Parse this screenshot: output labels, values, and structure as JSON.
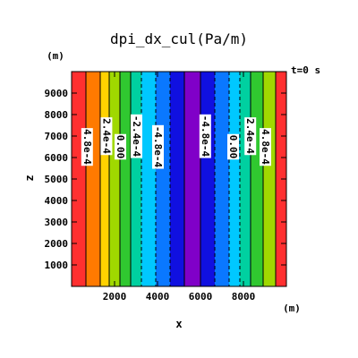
{
  "chart_data": {
    "type": "heatmap",
    "title": "dpi_dx_cul(Pa/m)",
    "xlabel": "x",
    "ylabel": "z",
    "x_unit": "(m)",
    "y_unit": "(m)",
    "time_label": "t=0  s",
    "xlim": [
      0,
      10000
    ],
    "ylim": [
      0,
      10000
    ],
    "x_ticks": [
      2000,
      4000,
      6000,
      8000
    ],
    "y_ticks": [
      1000,
      2000,
      3000,
      4000,
      5000,
      6000,
      7000,
      8000,
      9000
    ],
    "bands": [
      {
        "x0": 0,
        "x1": 667,
        "color": "#ff3030"
      },
      {
        "x0": 667,
        "x1": 1333,
        "color": "#ff7a00"
      },
      {
        "x0": 1333,
        "x1": 1750,
        "color": "#ffd200"
      },
      {
        "x0": 1750,
        "x1": 2250,
        "color": "#a0d800"
      },
      {
        "x0": 2250,
        "x1": 2750,
        "color": "#30c830"
      },
      {
        "x0": 2750,
        "x1": 3250,
        "color": "#00d0a0"
      },
      {
        "x0": 3250,
        "x1": 3917,
        "color": "#00c8ff"
      },
      {
        "x0": 3917,
        "x1": 4583,
        "color": "#0a78ff"
      },
      {
        "x0": 4583,
        "x1": 5250,
        "color": "#1010e0"
      },
      {
        "x0": 5250,
        "x1": 6000,
        "color": "#8000c8"
      },
      {
        "x0": 6000,
        "x1": 6667,
        "color": "#1010e0"
      },
      {
        "x0": 6667,
        "x1": 7333,
        "color": "#0a78ff"
      },
      {
        "x0": 7333,
        "x1": 7833,
        "color": "#00c8ff"
      },
      {
        "x0": 7833,
        "x1": 8333,
        "color": "#00d0a0"
      },
      {
        "x0": 8333,
        "x1": 8917,
        "color": "#30c830"
      },
      {
        "x0": 8917,
        "x1": 9500,
        "color": "#a0d800"
      },
      {
        "x0": 9500,
        "x1": 10000,
        "color": "#ff3030"
      }
    ],
    "contour_lines": [
      667,
      1333,
      1750,
      2250,
      2750,
      3250,
      3917,
      4583,
      5250,
      6000,
      6667,
      7333,
      7833,
      8333,
      8917,
      9500
    ],
    "dashed_contours": [
      3250,
      3917,
      4583,
      6667,
      7333,
      7833
    ],
    "contour_labels": [
      {
        "text": "4.8e-4",
        "x": 700,
        "y": 6500
      },
      {
        "text": "2.4e-4",
        "x": 1600,
        "y": 7000
      },
      {
        "text": "0.00",
        "x": 2250,
        "y": 6500
      },
      {
        "text": "-2.4e-4",
        "x": 3000,
        "y": 7000
      },
      {
        "text": "-4.8e-4",
        "x": 4000,
        "y": 6500
      },
      {
        "text": "-4.8e-4",
        "x": 6200,
        "y": 7000
      },
      {
        "text": "0.00",
        "x": 7500,
        "y": 6500
      },
      {
        "text": "2.4e-4",
        "x": 8300,
        "y": 7000
      },
      {
        "text": "4.8e-4",
        "x": 9000,
        "y": 6500
      }
    ]
  }
}
